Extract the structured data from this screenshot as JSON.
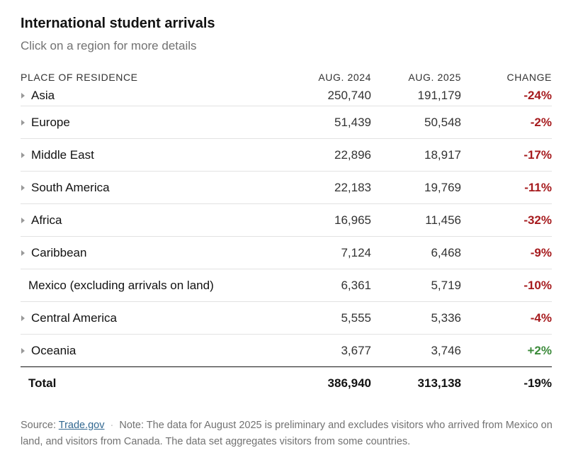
{
  "chart_data": {
    "type": "table",
    "title": "International student arrivals",
    "subtitle": "Click on a region for more details",
    "columns": [
      "PLACE OF RESIDENCE",
      "AUG. 2024",
      "AUG. 2025",
      "CHANGE"
    ],
    "rows": [
      {
        "region": "Asia",
        "aug2024": "250,740",
        "aug2025": "191,179",
        "change": "-24%",
        "expandable": true
      },
      {
        "region": "Europe",
        "aug2024": "51,439",
        "aug2025": "50,548",
        "change": "-2%",
        "expandable": true
      },
      {
        "region": "Middle East",
        "aug2024": "22,896",
        "aug2025": "18,917",
        "change": "-17%",
        "expandable": true
      },
      {
        "region": "South America",
        "aug2024": "22,183",
        "aug2025": "19,769",
        "change": "-11%",
        "expandable": true
      },
      {
        "region": "Africa",
        "aug2024": "16,965",
        "aug2025": "11,456",
        "change": "-32%",
        "expandable": true
      },
      {
        "region": "Caribbean",
        "aug2024": "7,124",
        "aug2025": "6,468",
        "change": "-9%",
        "expandable": true
      },
      {
        "region": "Mexico (excluding arrivals on land)",
        "aug2024": "6,361",
        "aug2025": "5,719",
        "change": "-10%",
        "expandable": false
      },
      {
        "region": "Central America",
        "aug2024": "5,555",
        "aug2025": "5,336",
        "change": "-4%",
        "expandable": true
      },
      {
        "region": "Oceania",
        "aug2024": "3,677",
        "aug2025": "3,746",
        "change": "+2%",
        "expandable": true
      }
    ],
    "total": {
      "label": "Total",
      "aug2024": "386,940",
      "aug2025": "313,138",
      "change": "-19%"
    },
    "colors": {
      "negative": "#a61b1e",
      "positive": "#3b8a3a",
      "link": "#326891"
    }
  },
  "footer": {
    "source_label": "Source: ",
    "source_link": "Trade.gov",
    "note": "Note: The data for August 2025 is preliminary and excludes visitors who arrived from Mexico on land, and visitors from Canada. The data set aggregates visitors from some countries."
  }
}
